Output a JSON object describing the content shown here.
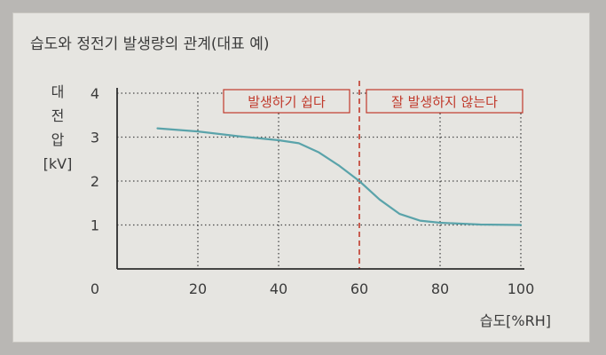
{
  "chart_data": {
    "type": "line",
    "title": "습도와 정전기 발생량의 관계(대표 예)",
    "xlabel": "습도[%RH]",
    "ylabel": [
      "대",
      "전",
      "압",
      "[kV]"
    ],
    "xlim": [
      0,
      100
    ],
    "ylim": [
      0,
      4
    ],
    "xticks": [
      0,
      20,
      40,
      60,
      80,
      100
    ],
    "yticks": [
      1,
      2,
      3,
      4
    ],
    "grid": "dotted",
    "reference_line": {
      "x": 60,
      "color": "#c0392b",
      "style": "dashed"
    },
    "regions": [
      {
        "label": "발생하기 쉽다",
        "position": "left-of-reference"
      },
      {
        "label": "잘 발생하지 않는다",
        "position": "right-of-reference"
      }
    ],
    "series": [
      {
        "color": "#5aa3aa",
        "x": [
          10,
          20,
          30,
          40,
          45,
          50,
          55,
          60,
          65,
          70,
          75,
          80,
          90,
          100
        ],
        "y": [
          3.2,
          3.13,
          3.02,
          2.93,
          2.86,
          2.65,
          2.35,
          2.0,
          1.58,
          1.25,
          1.1,
          1.05,
          1.01,
          1.0
        ]
      }
    ]
  }
}
